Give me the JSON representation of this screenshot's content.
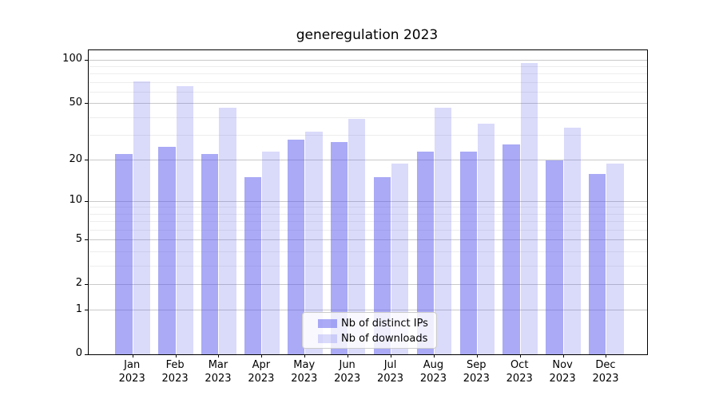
{
  "title": "generegulation 2023",
  "chart_data": {
    "type": "bar",
    "title": "generegulation 2023",
    "categories": [
      "Jan 2023",
      "Feb 2023",
      "Mar 2023",
      "Apr 2023",
      "May 2023",
      "Jun 2023",
      "Jul 2023",
      "Aug 2023",
      "Sep 2023",
      "Oct 2023",
      "Nov 2023",
      "Dec 2023"
    ],
    "month_labels": [
      "Jan",
      "Feb",
      "Mar",
      "Apr",
      "May",
      "Jun",
      "Jul",
      "Aug",
      "Sep",
      "Oct",
      "Nov",
      "Dec"
    ],
    "year_label": "2023",
    "series": [
      {
        "name": "Nb of distinct IPs",
        "color": "rgba(85,85,237,0.50)",
        "values": [
          22,
          25,
          22,
          15,
          28,
          27,
          15,
          23,
          23,
          26,
          20,
          16
        ]
      },
      {
        "name": "Nb of downloads",
        "color": "rgba(85,85,237,0.22)",
        "values": [
          71,
          66,
          47,
          23,
          32,
          39,
          19,
          47,
          36,
          95,
          34,
          19
        ]
      }
    ],
    "xlabel": "",
    "ylabel": "",
    "yscale": "symlog (log1p)",
    "ylim": [
      0,
      116.5
    ],
    "y_major_ticks": [
      0,
      1,
      2,
      5,
      10,
      20,
      50,
      100
    ],
    "y_minor_ticks": [
      3,
      4,
      6,
      7,
      8,
      9,
      30,
      40,
      60,
      70,
      80,
      90
    ],
    "grid": "horizontal major and minor",
    "legend_position": "lower center"
  },
  "colors": {
    "major_grid": "#c9c9c9",
    "minor_grid": "#ededed",
    "spine": "#000000",
    "text": "#000000",
    "legend_bg": "rgba(255,255,255,0.8)",
    "legend_border": "#cccccc"
  }
}
